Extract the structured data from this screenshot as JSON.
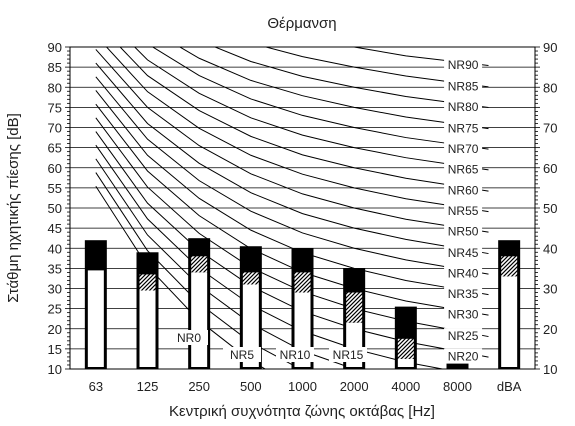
{
  "chart_data": {
    "type": "bar",
    "title": "Θέρμανση",
    "xlabel": "Κεντρική συχνότητα ζώνης οκτάβας [Hz]",
    "ylabel": "Στάθμη ηχητικής πίεσης [dB]",
    "categories": [
      "63",
      "125",
      "250",
      "500",
      "1000",
      "2000",
      "4000",
      "8000",
      "dBA"
    ],
    "ylim": [
      10,
      90
    ],
    "yticks": [
      10,
      15,
      20,
      25,
      30,
      35,
      40,
      45,
      50,
      55,
      60,
      65,
      70,
      75,
      80,
      85,
      90
    ],
    "right_yticks": [
      10,
      20,
      30,
      40,
      50,
      60,
      70,
      80,
      90
    ],
    "grid": true,
    "bar_levels": {
      "white_top": [
        34.5,
        29.5,
        34,
        31,
        29,
        21.5,
        12.5,
        10,
        33
      ],
      "hatched_top": [
        34.5,
        33.5,
        38,
        34,
        34,
        29,
        17.5,
        10,
        38
      ],
      "black_top": [
        42,
        39,
        42.5,
        40.5,
        40,
        35,
        25.5,
        12.5,
        42
      ]
    },
    "nr_curves": [
      {
        "name": "NR0",
        "values": [
          55.4,
          35.5,
          22.0,
          12.0,
          4.8,
          0.0,
          -3.5,
          -6.1
        ]
      },
      {
        "name": "NR5",
        "values": [
          58.8,
          39.4,
          26.3,
          16.6,
          9.7,
          5.0,
          1.6,
          -1.0
        ]
      },
      {
        "name": "NR10",
        "values": [
          62.2,
          43.3,
          30.7,
          21.3,
          14.5,
          10.0,
          6.6,
          4.2
        ]
      },
      {
        "name": "NR15",
        "values": [
          65.6,
          47.3,
          35.0,
          25.9,
          19.4,
          15.0,
          11.7,
          9.3
        ]
      },
      {
        "name": "NR20",
        "values": [
          69.0,
          51.2,
          39.4,
          30.6,
          24.3,
          20.0,
          16.8,
          14.4
        ]
      },
      {
        "name": "NR25",
        "values": [
          72.4,
          55.2,
          43.7,
          35.2,
          29.2,
          25.0,
          21.9,
          19.5
        ]
      },
      {
        "name": "NR30",
        "values": [
          75.8,
          59.2,
          48.1,
          39.9,
          34.0,
          30.0,
          26.9,
          24.7
        ]
      },
      {
        "name": "NR35",
        "values": [
          79.2,
          63.1,
          52.4,
          44.5,
          38.9,
          35.0,
          32.0,
          29.8
        ]
      },
      {
        "name": "NR40",
        "values": [
          82.6,
          67.1,
          56.8,
          49.2,
          43.8,
          40.0,
          37.1,
          34.9
        ]
      },
      {
        "name": "NR45",
        "values": [
          86.0,
          71.0,
          61.1,
          53.8,
          48.6,
          45.0,
          42.2,
          40.0
        ]
      },
      {
        "name": "NR50",
        "values": [
          89.4,
          75.0,
          65.5,
          58.5,
          53.5,
          50.0,
          47.2,
          45.2
        ]
      },
      {
        "name": "NR55",
        "values": [
          92.9,
          78.9,
          69.8,
          63.1,
          58.4,
          55.0,
          52.3,
          50.3
        ]
      },
      {
        "name": "NR60",
        "values": [
          96.3,
          82.9,
          74.2,
          67.8,
          63.2,
          60.0,
          57.4,
          55.4
        ]
      },
      {
        "name": "NR65",
        "values": [
          99.7,
          86.8,
          78.5,
          72.4,
          68.1,
          65.0,
          62.5,
          60.6
        ]
      },
      {
        "name": "NR70",
        "values": [
          103.1,
          90.8,
          82.9,
          77.1,
          73.0,
          70.0,
          67.5,
          65.7
        ]
      },
      {
        "name": "NR75",
        "values": [
          106.5,
          94.7,
          87.2,
          81.7,
          77.9,
          75.0,
          72.6,
          70.8
        ]
      },
      {
        "name": "NR80",
        "values": [
          109.9,
          98.7,
          91.6,
          86.4,
          82.7,
          80.0,
          77.7,
          76.0
        ]
      },
      {
        "name": "NR85",
        "values": [
          113.3,
          102.6,
          95.9,
          91.0,
          87.6,
          85.0,
          82.8,
          81.1
        ]
      },
      {
        "name": "NR90",
        "values": [
          116.7,
          106.6,
          100.3,
          95.7,
          92.5,
          90.0,
          87.8,
          86.3
        ]
      }
    ],
    "colors": {
      "background": "#ffffff",
      "text": "#222222",
      "grid": "#000000",
      "bar_fill": "#ffffff",
      "bar_black": "#000000",
      "curve": "#000000"
    }
  }
}
